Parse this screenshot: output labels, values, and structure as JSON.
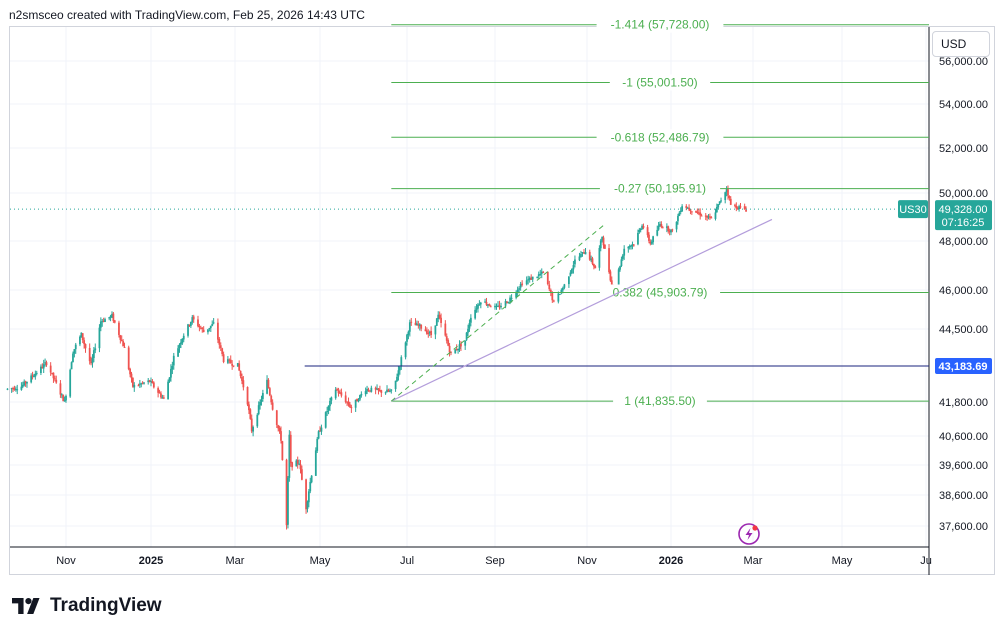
{
  "header": {
    "attribution": "n2smsceo created with TradingView.com, Feb 25, 2026 14:43 UTC"
  },
  "brand": {
    "name": "TradingView"
  },
  "currency_button": {
    "label": "USD"
  },
  "colors": {
    "up": "#26a69a",
    "down": "#ef5350",
    "fib": "#4caf50",
    "trend": "#b39ddb",
    "hline": "#1a237e",
    "hline_badge": "#2962ff",
    "price_badge": "#26a69a",
    "grid": "#f0f3fa"
  },
  "chart_data": {
    "type": "candlestick",
    "symbol": "US30",
    "currency": "USD",
    "y_axis": {
      "ticks": [
        37600,
        38600,
        39600,
        40600,
        41800,
        43183.69,
        44500,
        46000,
        48000,
        50000,
        52000,
        54000,
        56000
      ],
      "tick_labels": [
        "37,600.00",
        "38,600.00",
        "39,600.00",
        "40,600.00",
        "41,800.00",
        "",
        "44,500.00",
        "46,000.00",
        "48,000.00",
        "50,000.00",
        "52,000.00",
        "54,000.00",
        "56,000.00"
      ],
      "range": [
        36300,
        58000
      ]
    },
    "x_axis": {
      "labels": [
        {
          "text": "Nov",
          "date": "2024-11-01",
          "bold": false
        },
        {
          "text": "2025",
          "date": "2025-01-01",
          "bold": true
        },
        {
          "text": "Mar",
          "date": "2025-03-01",
          "bold": false
        },
        {
          "text": "May",
          "date": "2025-05-01",
          "bold": false
        },
        {
          "text": "Jul",
          "date": "2025-07-01",
          "bold": false
        },
        {
          "text": "Sep",
          "date": "2025-09-01",
          "bold": false
        },
        {
          "text": "Nov",
          "date": "2025-11-01",
          "bold": false
        },
        {
          "text": "2026",
          "date": "2026-01-01",
          "bold": true
        },
        {
          "text": "Mar",
          "date": "2026-03-01",
          "bold": false
        },
        {
          "text": "May",
          "date": "2026-05-01",
          "bold": false
        },
        {
          "text": "Ju",
          "date": "2026-07-01",
          "bold": false
        }
      ],
      "range": [
        "2024-09-20",
        "2026-07-01"
      ]
    },
    "close_path": [
      [
        "2024-09-20",
        42300
      ],
      [
        "2024-09-30",
        42400
      ],
      [
        "2024-10-10",
        42900
      ],
      [
        "2024-10-18",
        43300
      ],
      [
        "2024-10-31",
        41800
      ],
      [
        "2024-11-06",
        43700
      ],
      [
        "2024-11-12",
        44300
      ],
      [
        "2024-11-19",
        43200
      ],
      [
        "2024-11-26",
        44800
      ],
      [
        "2024-12-04",
        45000
      ],
      [
        "2024-12-13",
        43800
      ],
      [
        "2024-12-19",
        42400
      ],
      [
        "2024-12-31",
        42600
      ],
      [
        "2025-01-10",
        41900
      ],
      [
        "2025-01-17",
        43500
      ],
      [
        "2025-01-23",
        44200
      ],
      [
        "2025-01-30",
        44900
      ],
      [
        "2025-02-07",
        44400
      ],
      [
        "2025-02-14",
        44700
      ],
      [
        "2025-02-21",
        43400
      ],
      [
        "2025-03-03",
        43200
      ],
      [
        "2025-03-10",
        41800
      ],
      [
        "2025-03-13",
        40800
      ],
      [
        "2025-03-18",
        41600
      ],
      [
        "2025-03-24",
        42600
      ],
      [
        "2025-03-28",
        41600
      ],
      [
        "2025-04-03",
        40500
      ],
      [
        "2025-04-07",
        37600
      ],
      [
        "2025-04-09",
        40600
      ],
      [
        "2025-04-10",
        39600
      ],
      [
        "2025-04-16",
        39700
      ],
      [
        "2025-04-21",
        38200
      ],
      [
        "2025-04-30",
        40700
      ],
      [
        "2025-05-12",
        42300
      ],
      [
        "2025-05-23",
        41600
      ],
      [
        "2025-06-02",
        42300
      ],
      [
        "2025-06-13",
        42200
      ],
      [
        "2025-06-20",
        42200
      ],
      [
        "2025-06-23",
        42600
      ],
      [
        "2025-07-03",
        44700
      ],
      [
        "2025-07-10",
        44600
      ],
      [
        "2025-07-18",
        44300
      ],
      [
        "2025-07-23",
        45000
      ],
      [
        "2025-08-01",
        43600
      ],
      [
        "2025-08-11",
        44100
      ],
      [
        "2025-08-15",
        45000
      ],
      [
        "2025-08-22",
        45600
      ],
      [
        "2025-09-02",
        45300
      ],
      [
        "2025-09-10",
        45600
      ],
      [
        "2025-09-19",
        46300
      ],
      [
        "2025-10-03",
        46700
      ],
      [
        "2025-10-10",
        45500
      ],
      [
        "2025-10-17",
        46200
      ],
      [
        "2025-10-24",
        47200
      ],
      [
        "2025-10-31",
        47600
      ],
      [
        "2025-11-07",
        46900
      ],
      [
        "2025-11-12",
        48200
      ],
      [
        "2025-11-20",
        45900
      ],
      [
        "2025-11-28",
        47700
      ],
      [
        "2025-12-05",
        47900
      ],
      [
        "2025-12-11",
        48700
      ],
      [
        "2025-12-17",
        47900
      ],
      [
        "2025-12-24",
        48700
      ],
      [
        "2026-01-02",
        48400
      ],
      [
        "2026-01-09",
        49500
      ],
      [
        "2026-01-16",
        49300
      ],
      [
        "2026-01-23",
        49100
      ],
      [
        "2026-01-30",
        48900
      ],
      [
        "2026-02-05",
        49600
      ],
      [
        "2026-02-10",
        50200
      ],
      [
        "2026-02-13",
        49500
      ],
      [
        "2026-02-19",
        49400
      ],
      [
        "2026-02-24",
        49300
      ]
    ],
    "fibonacci_levels": [
      {
        "label": "-1.414 (57,728.00)",
        "price": 57728.0
      },
      {
        "label": "-1 (55,001.50)",
        "price": 55001.5
      },
      {
        "label": "-0.618 (52,486.79)",
        "price": 52486.79
      },
      {
        "label": "-0.27 (50,195.91)",
        "price": 50195.91
      },
      {
        "label": "0.382 (45,903.79)",
        "price": 45903.79
      },
      {
        "label": "1 (41,835.50)",
        "price": 41835.5
      }
    ],
    "fibonacci_start_date": "2025-06-20",
    "horizontal_line": {
      "price": 43183.69,
      "label": "43,183.69",
      "start_date": "2025-04-20"
    },
    "trend_line": {
      "from": [
        "2025-06-20",
        41835.5
      ],
      "to": [
        "2026-03-14",
        48900
      ]
    },
    "projection_line": {
      "from": [
        "2025-06-20",
        41835.5
      ],
      "to": [
        "2025-11-14",
        48700
      ]
    },
    "last_price": {
      "symbol": "US30",
      "label": "49,328.00",
      "value": 49328.0,
      "countdown": "07:16:25"
    }
  }
}
